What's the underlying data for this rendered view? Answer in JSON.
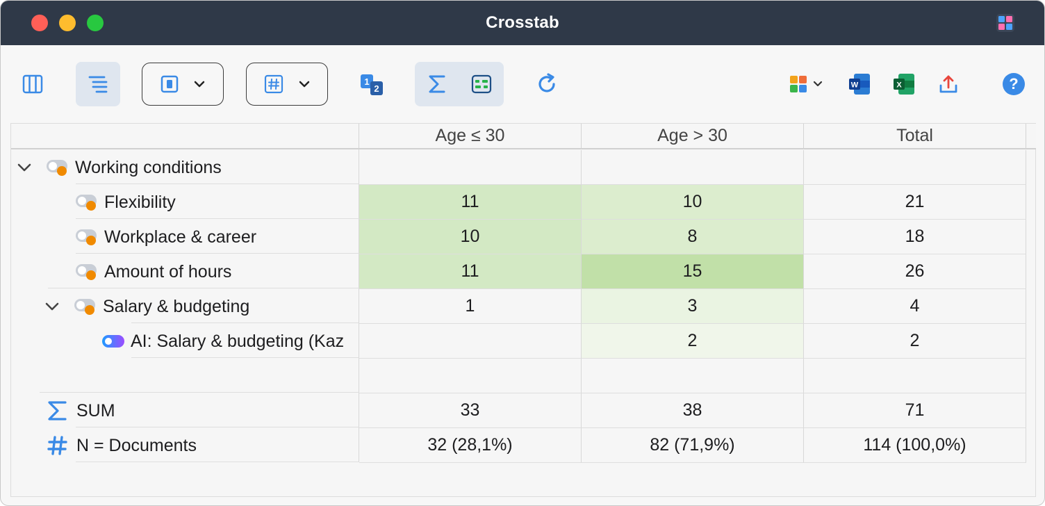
{
  "window": {
    "title": "Crosstab"
  },
  "toolbar": {
    "icons": [
      "columns-icon",
      "tree-layout-icon",
      "cell-display-dropdown",
      "number-format-dropdown",
      "swap-numbering-icon",
      "sum-icon",
      "code-toggle-icon",
      "refresh-icon",
      "puzzle-icon",
      "word-export-icon",
      "excel-export-icon",
      "export-icon",
      "help-icon"
    ],
    "help_label": "?"
  },
  "columns": [
    "Age ≤ 30",
    "Age > 30",
    "Total"
  ],
  "rows": [
    {
      "label": "Working conditions",
      "cells": [
        "",
        "",
        ""
      ],
      "shades": [
        0,
        0,
        0
      ]
    },
    {
      "label": "Flexibility",
      "cells": [
        "11",
        "10",
        "21"
      ],
      "shades": [
        2,
        1,
        0
      ]
    },
    {
      "label": "Workplace & career",
      "cells": [
        "10",
        "8",
        "18"
      ],
      "shades": [
        2,
        1,
        0
      ]
    },
    {
      "label": "Amount of hours",
      "cells": [
        "11",
        "15",
        "26"
      ],
      "shades": [
        2,
        3,
        0
      ]
    },
    {
      "label": "Salary & budgeting",
      "cells": [
        "1",
        "3",
        "4"
      ],
      "shades": [
        0,
        4,
        0
      ]
    },
    {
      "label": "AI: Salary & budgeting (Kaz",
      "cells": [
        "",
        "2",
        "2"
      ],
      "shades": [
        0,
        5,
        0
      ]
    },
    {
      "label": "",
      "cells": [
        "",
        "",
        ""
      ],
      "shades": [
        0,
        0,
        0
      ]
    }
  ],
  "summary": [
    {
      "icon": "sigma-icon",
      "label": "SUM",
      "cells": [
        "33",
        "38",
        "71"
      ]
    },
    {
      "icon": "hash-icon",
      "label": "N = Documents",
      "cells": [
        "32 (28,1%)",
        "82 (71,9%)",
        "114 (100,0%)"
      ]
    }
  ],
  "colors": {
    "titlebar": "#2f3948",
    "accent": "#3a8ae6",
    "code_orange": "#f08a00",
    "shade_1": "#dcedce",
    "shade_2": "#d3e9c4",
    "shade_3": "#c1e0a8",
    "shade_4": "#eaf4e2",
    "shade_5": "#f0f6ea"
  }
}
